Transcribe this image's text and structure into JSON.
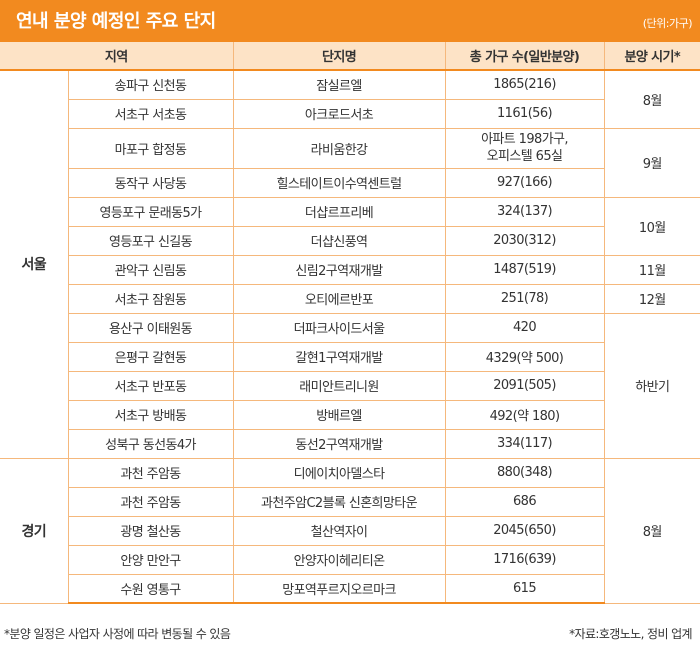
{
  "title": "연내 분양 예정인 주요 단지",
  "unit": "(단위:가구)",
  "headers": [
    "지역",
    "단지명",
    "총 가구 수(일반분양)",
    "분양 시기*"
  ],
  "regions": {
    "seoul": "서울",
    "gyeonggi": "경기"
  },
  "rows": [
    {
      "district": "송파구 신천동",
      "complex": "잠실르엘",
      "units": "1865(216)"
    },
    {
      "district": "서초구 서초동",
      "complex": "아크로드서초",
      "units": "1161(56)"
    },
    {
      "district": "마포구 합정동",
      "complex": "라비움한강",
      "units": "아파트 198가구,",
      "units2": "오피스텔 65실"
    },
    {
      "district": "동작구 사당동",
      "complex": "힐스테이트이수역센트럴",
      "units": "927(166)"
    },
    {
      "district": "영등포구 문래동5가",
      "complex": "더샵르프리베",
      "units": "324(137)"
    },
    {
      "district": "영등포구 신길동",
      "complex": "더샵신풍역",
      "units": "2030(312)"
    },
    {
      "district": "관악구 신림동",
      "complex": "신림2구역재개발",
      "units": "1487(519)"
    },
    {
      "district": "서초구 잠원동",
      "complex": "오티에르반포",
      "units": "251(78)"
    },
    {
      "district": "용산구 이태원동",
      "complex": "더파크사이드서울",
      "units": "420"
    },
    {
      "district": "은평구 갈현동",
      "complex": "갈현1구역재개발",
      "units": "4329(약 500)"
    },
    {
      "district": "서초구 반포동",
      "complex": "래미안트리니원",
      "units": "2091(505)"
    },
    {
      "district": "서초구 방배동",
      "complex": "방배르엘",
      "units": "492(약 180)"
    },
    {
      "district": "성북구 동선동4가",
      "complex": "동선2구역재개발",
      "units": "334(117)"
    },
    {
      "district": "과천 주암동",
      "complex": "디에이치아델스타",
      "units": "880(348)"
    },
    {
      "district": "과천 주암동",
      "complex": "과천주암C2블록 신혼희망타운",
      "units": "686"
    },
    {
      "district": "광명 철산동",
      "complex": "철산역자이",
      "units": "2045(650)"
    },
    {
      "district": "안양 만안구",
      "complex": "안양자이헤리티온",
      "units": "1716(639)"
    },
    {
      "district": "수원 영통구",
      "complex": "망포역푸르지오르마크",
      "units": "615"
    }
  ],
  "periods": {
    "aug_seoul": "8월",
    "sep": "9월",
    "oct": "10월",
    "nov": "11월",
    "dec": "12월",
    "h2": "하반기",
    "aug_gyeonggi": "8월"
  },
  "footnote": "*분양 일정은 사업자 사정에 따라 변동될 수 있음",
  "source": "*자료:호갱노노, 정비 업계",
  "colors": {
    "accent": "#f28a1f",
    "header_bg": "#fde3c6",
    "border": "#f5b87c"
  }
}
